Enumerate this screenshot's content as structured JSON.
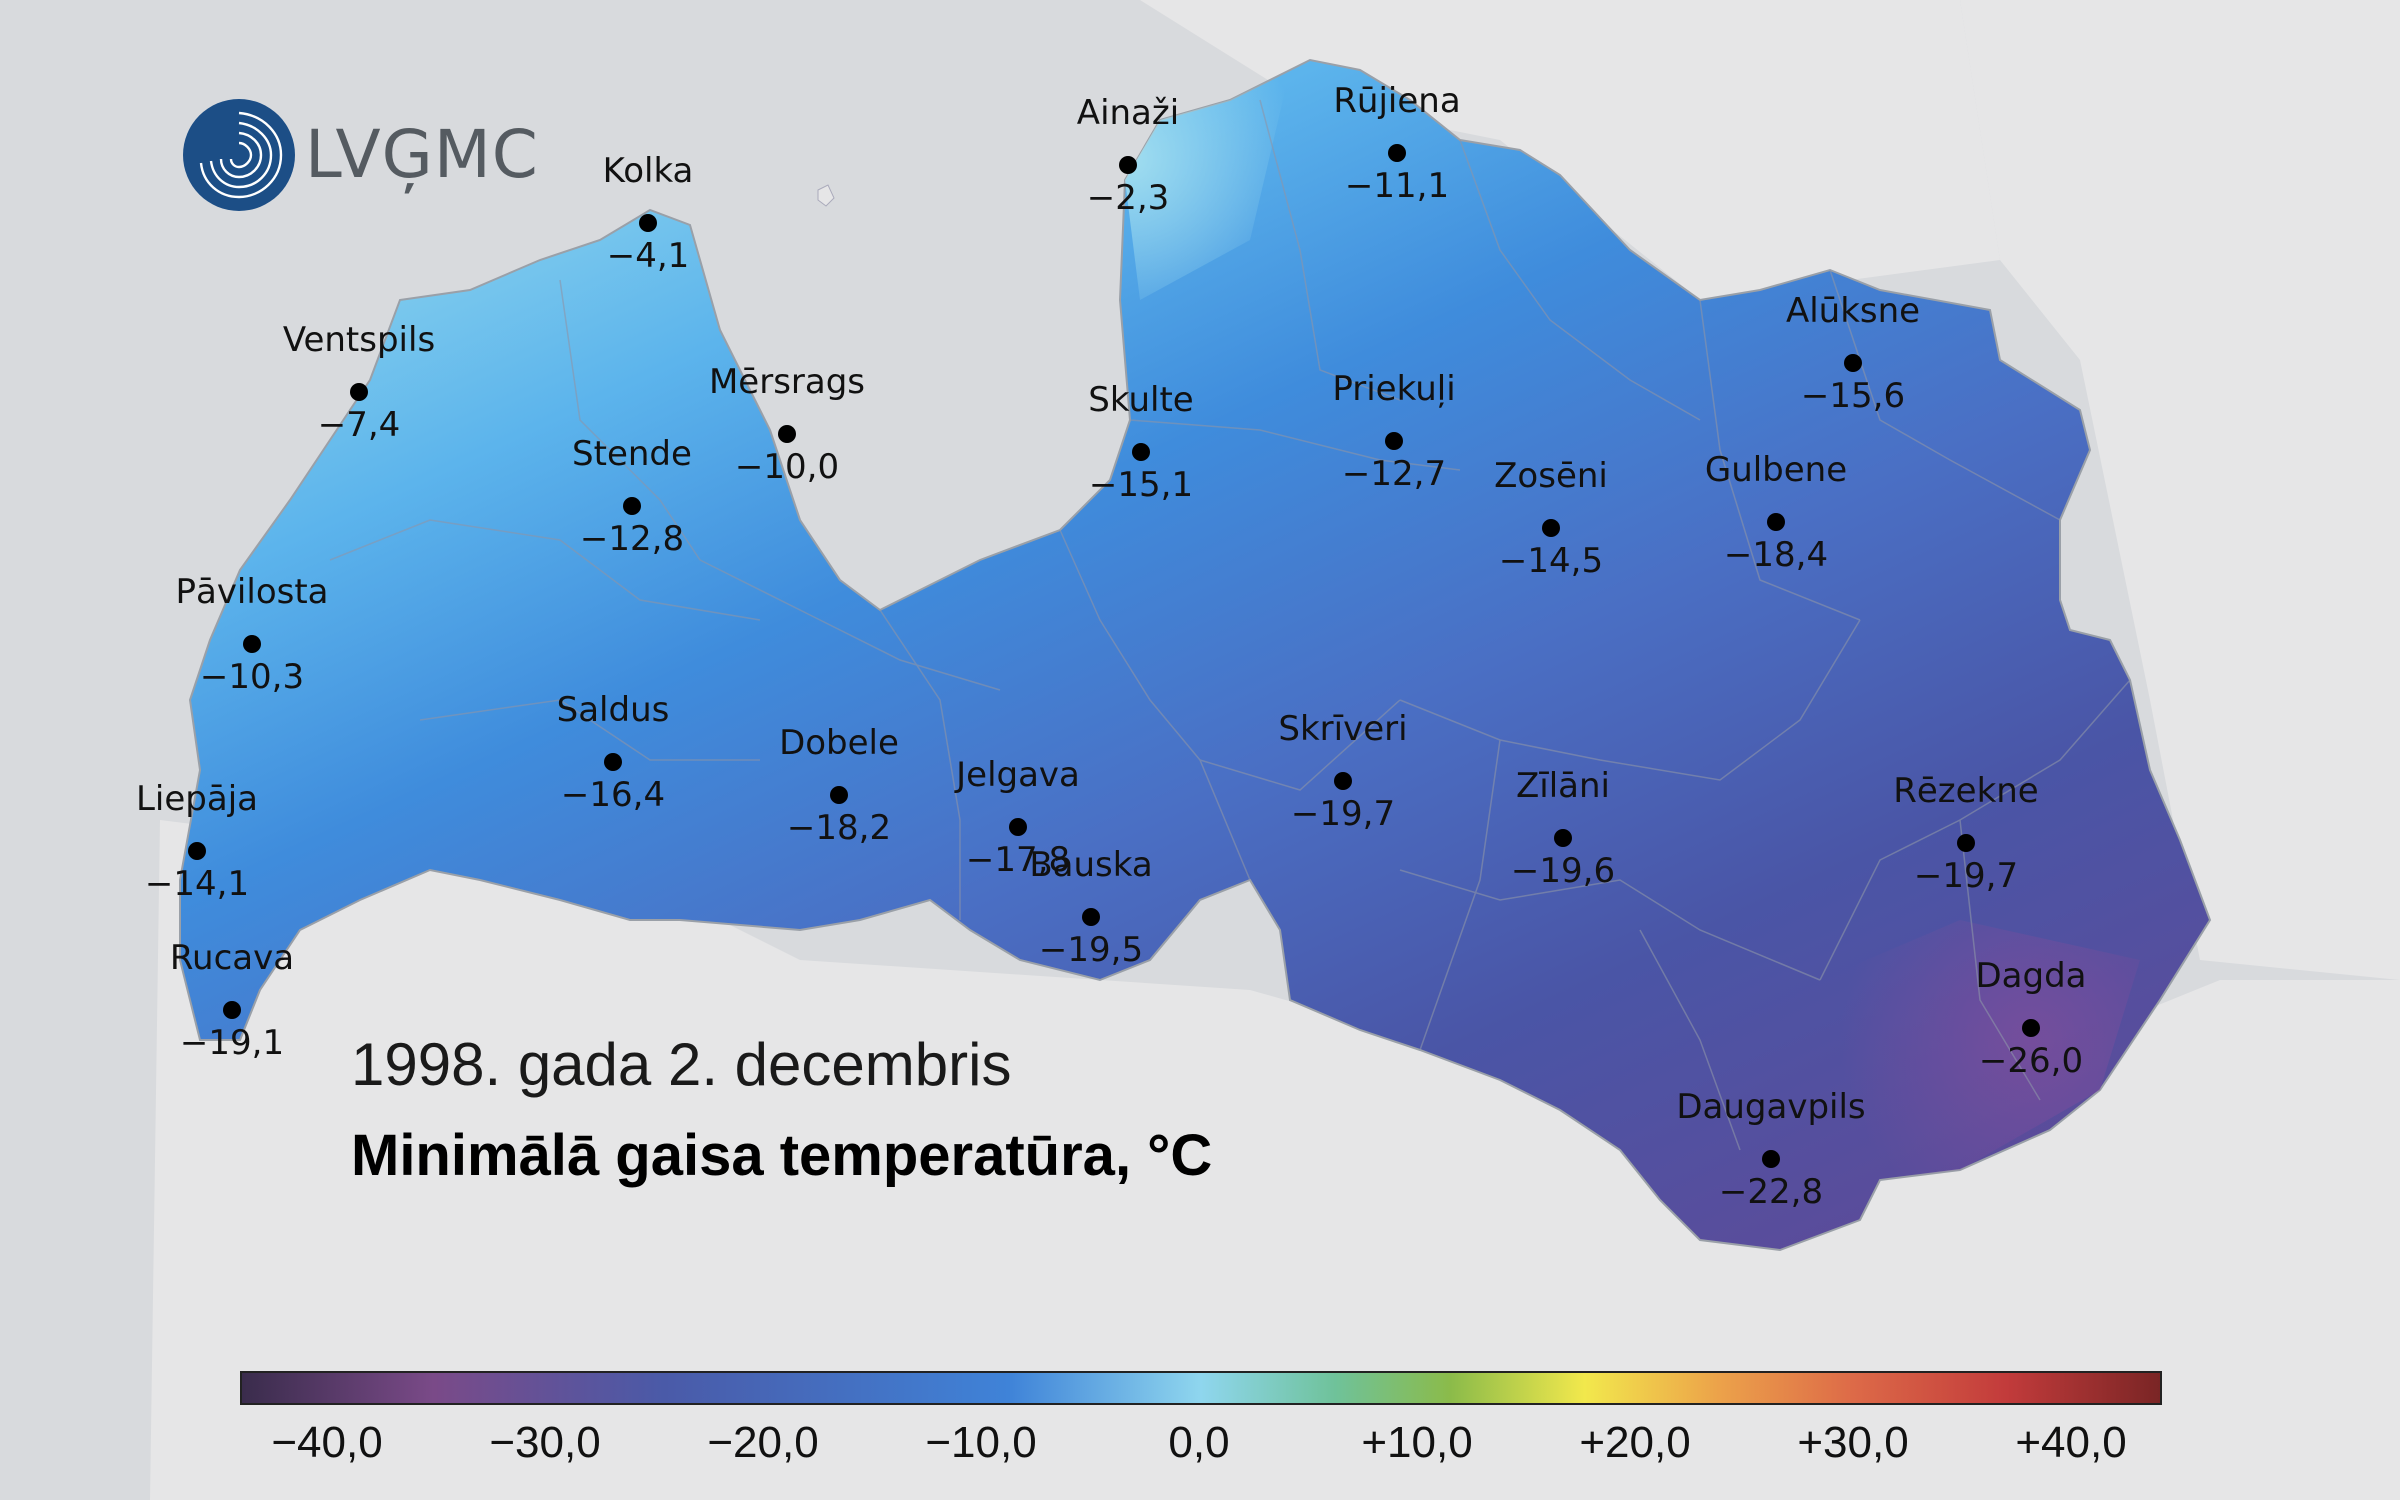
{
  "logo": {
    "text": "LVĢMC"
  },
  "date": "1998. gada 2. decembris",
  "title": "Minimālā gaisa temperatūra, °C",
  "stations": [
    {
      "name": "Ainaži",
      "value": "−2,3"
    },
    {
      "name": "Rūjiena",
      "value": "−11,1"
    },
    {
      "name": "Kolka",
      "value": "−4,1"
    },
    {
      "name": "Ventspils",
      "value": "−7,4"
    },
    {
      "name": "Mērsrags",
      "value": "−10,0"
    },
    {
      "name": "Skulte",
      "value": "−15,1"
    },
    {
      "name": "Priekuļi",
      "value": "−12,7"
    },
    {
      "name": "Alūksne",
      "value": "−15,6"
    },
    {
      "name": "Stende",
      "value": "−12,8"
    },
    {
      "name": "Zosēni",
      "value": "−14,5"
    },
    {
      "name": "Gulbene",
      "value": "−18,4"
    },
    {
      "name": "Pāvilosta",
      "value": "−10,3"
    },
    {
      "name": "Saldus",
      "value": "−16,4"
    },
    {
      "name": "Dobele",
      "value": "−18,2"
    },
    {
      "name": "Jelgava",
      "value": "−17,8"
    },
    {
      "name": "Skrīveri",
      "value": "−19,7"
    },
    {
      "name": "Zīlāni",
      "value": "−19,6"
    },
    {
      "name": "Rēzekne",
      "value": "−19,7"
    },
    {
      "name": "Liepāja",
      "value": "−14,1"
    },
    {
      "name": "Bauska",
      "value": "−19,5"
    },
    {
      "name": "Rucava",
      "value": "−19,1"
    },
    {
      "name": "Dagda",
      "value": "−26,0"
    },
    {
      "name": "Daugavpils",
      "value": "−22,8"
    }
  ],
  "scale": {
    "ticks": [
      "−40,0",
      "−30,0",
      "−20,0",
      "−10,0",
      "0,0",
      "+10,0",
      "+20,0",
      "+30,0",
      "+40,0"
    ]
  },
  "colors": {
    "sea": "#d8dadd",
    "land": "#e8e8e9",
    "cold_extreme": "#6a4a92",
    "mid": "#3f83d8",
    "warm_coast": "#8fd6ee"
  }
}
